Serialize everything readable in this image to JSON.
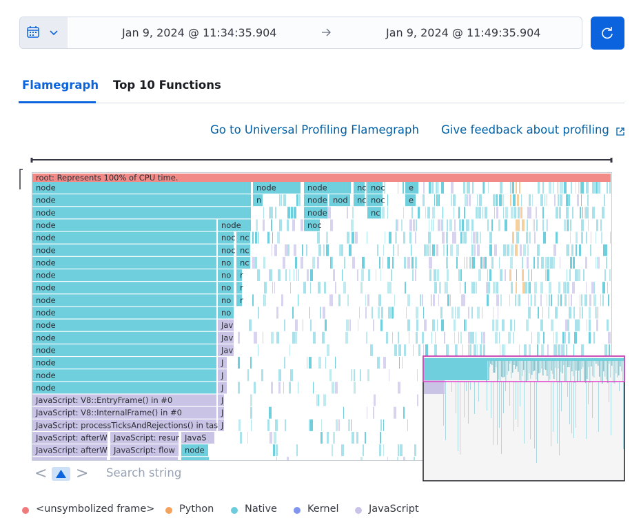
{
  "date_range": {
    "start": "Jan 9, 2024 @ 11:34:35.904",
    "end": "Jan 9, 2024 @ 11:49:35.904"
  },
  "tabs": [
    "Flamegraph",
    "Top 10 Functions"
  ],
  "links": [
    "Go to Universal Profiling Flamegraph",
    "Give feedback about profiling"
  ],
  "flamegraph": {
    "frames": [
      "root: Represents 100% of CPU time.",
      "node",
      "node",
      "node",
      "node",
      "node",
      "node",
      "node",
      "node",
      "node",
      "node",
      "node",
      "node",
      "node",
      "node",
      "node",
      "node",
      "node",
      "JavaScript: V8::EntryFrame() in #0",
      "JavaScript: V8::InternalFrame() in #0",
      "JavaScript: processTicksAndRejections() in tas",
      "JavaScript: afterW",
      "JavaScript: resur",
      "JavaS",
      "JavaScript: afterW",
      "JavaScript: flow",
      "node",
      "node",
      "node",
      "nc",
      "noc",
      "e",
      "n",
      "node",
      "nod",
      "nc",
      "noc",
      "e",
      "node",
      "nc",
      "node",
      "noc",
      "noc",
      "nc",
      "noc",
      "nc",
      "no",
      "nc",
      "no",
      "r",
      "no",
      "r",
      "no",
      "r",
      "no",
      "Jav",
      "Jav",
      "Jav",
      "J",
      "J",
      "J",
      "J",
      "J",
      "J"
    ]
  },
  "search": {
    "placeholder": "Search string"
  },
  "legend": [
    "<unsymbolized frame>",
    "Python",
    "Native",
    "Kernel",
    "JavaScript"
  ]
}
